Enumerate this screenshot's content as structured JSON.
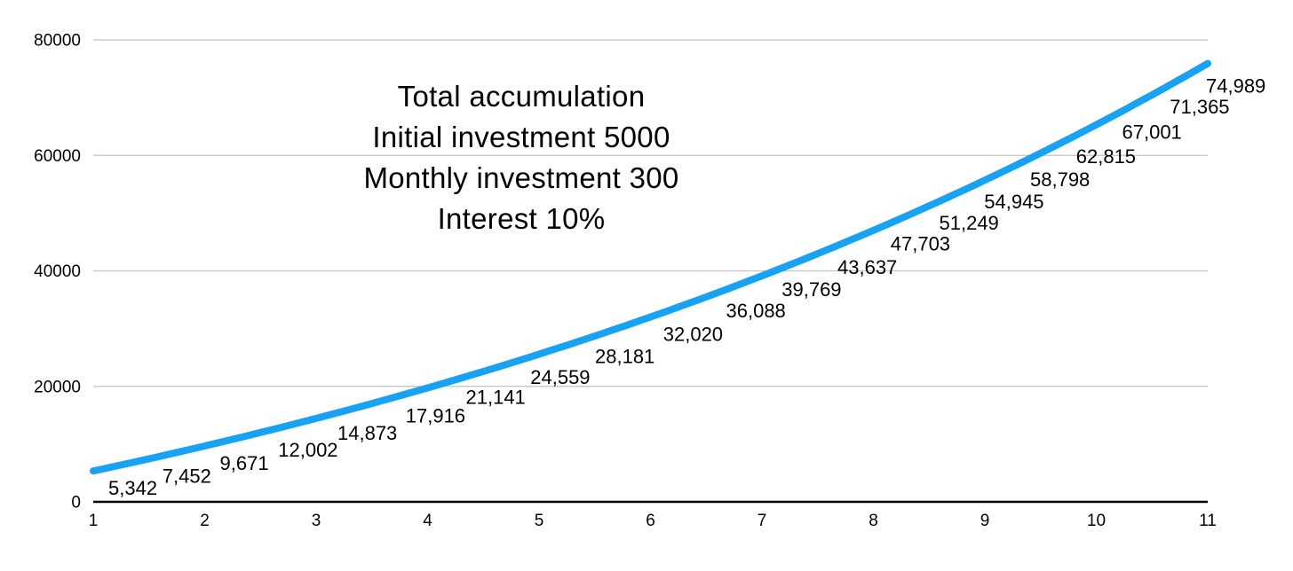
{
  "title": {
    "lines": [
      "Total accumulation",
      "Initial investment 5000",
      "Monthly investment 300",
      "Interest 10%"
    ]
  },
  "chart_data": {
    "type": "line",
    "title": "Total accumulation",
    "annotation_lines": [
      "Total accumulation",
      "Initial investment 5000",
      "Monthly investment 300",
      "Interest 10%"
    ],
    "parameters": {
      "initial_investment": 5000,
      "monthly_investment": 300,
      "interest_rate_percent": 10
    },
    "x": [
      1,
      1.5,
      2,
      2.5,
      3,
      3.5,
      4,
      4.5,
      5,
      5.5,
      6,
      6.5,
      7,
      7.5,
      8,
      8.5,
      9,
      9.5,
      10,
      10.5,
      11
    ],
    "values": [
      5342,
      7452,
      9671,
      12002,
      14873,
      17916,
      21141,
      24559,
      28181,
      32020,
      36088,
      39769,
      43637,
      47703,
      51249,
      54945,
      58798,
      62815,
      67001,
      71365,
      74989
    ],
    "point_labels": [
      "5,342",
      "7,452",
      "9,671",
      "12,002",
      "14,873",
      "17,916",
      "21,141",
      "24,559",
      "28,181",
      "32,020",
      "36,088",
      "39,769",
      "43,637",
      "47,703",
      "51,249",
      "54,945",
      "58,798",
      "62,815",
      "67,001",
      "71,365",
      "74,989"
    ],
    "x_ticks": [
      "1",
      "2",
      "3",
      "4",
      "5",
      "6",
      "7",
      "8",
      "9",
      "10",
      "11"
    ],
    "y_ticks": [
      0,
      20000,
      40000,
      60000,
      80000
    ],
    "y_tick_labels": [
      "0",
      "20000",
      "40000",
      "60000",
      "80000"
    ],
    "xlim": [
      1,
      11
    ],
    "ylim": [
      0,
      80000
    ],
    "grid": "horizontal-only",
    "legend": "none",
    "colors": {
      "line": "#17a2f3",
      "grid": "#c3c3c3",
      "axis": "#000000",
      "text": "#000000",
      "background": "#ffffff"
    }
  }
}
